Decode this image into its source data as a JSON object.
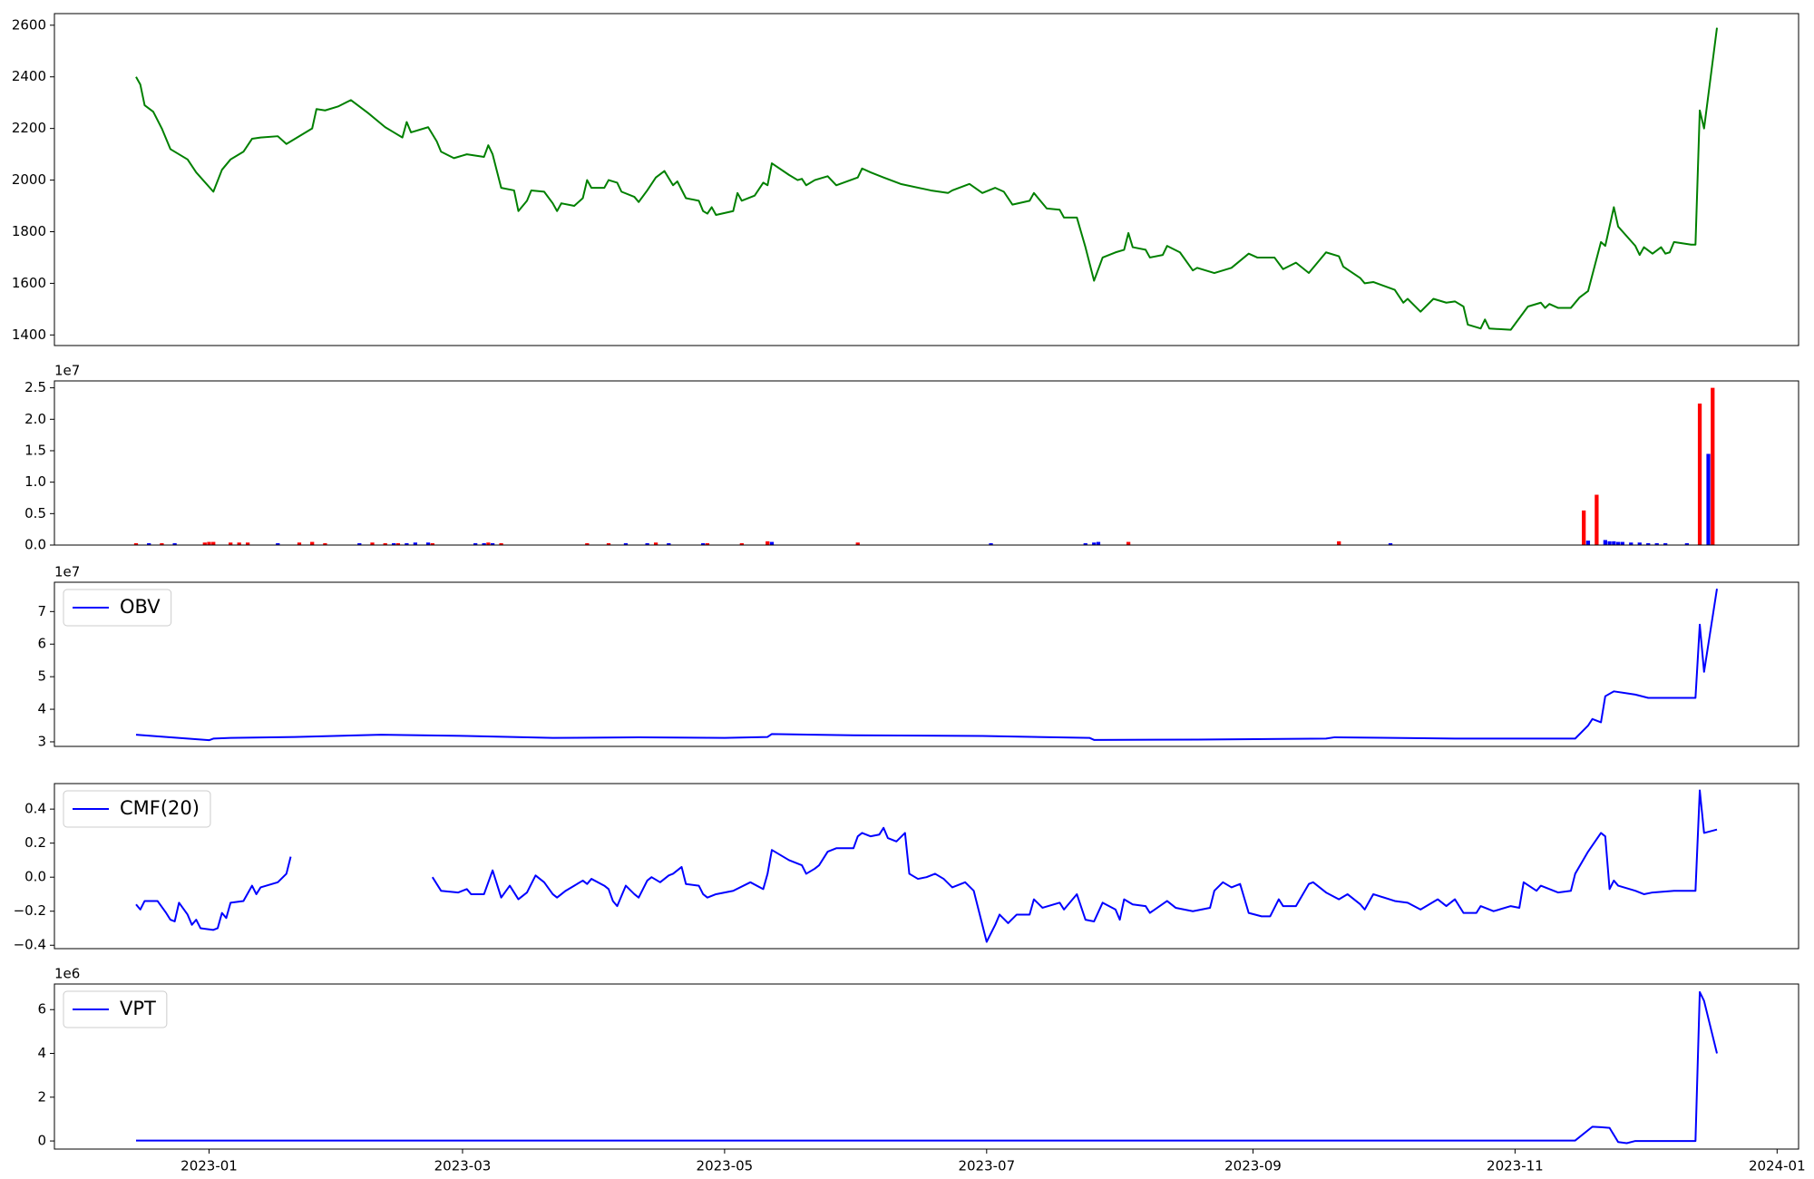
{
  "chart_data": [
    {
      "type": "line",
      "x": [
        -17,
        -16,
        -15,
        -13,
        -11,
        -9,
        -5,
        -3,
        1,
        3,
        5,
        8,
        10,
        12,
        16,
        18,
        24,
        25,
        27,
        30,
        33,
        35,
        37,
        41,
        43,
        45,
        46,
        47,
        51,
        53,
        54,
        57,
        60,
        64,
        65,
        66,
        68,
        71,
        72,
        74,
        75,
        78,
        80,
        81,
        82,
        85,
        87,
        88,
        89,
        92,
        93,
        95,
        96,
        99,
        100,
        102,
        104,
        106,
        108,
        109,
        111,
        114,
        115,
        116,
        117,
        118,
        122,
        123,
        124,
        127,
        129,
        130,
        131,
        135,
        137,
        138,
        139,
        141,
        144,
        146,
        151,
        152,
        154,
        157,
        161,
        168,
        172,
        173,
        177,
        180,
        183,
        185,
        187,
        191,
        192,
        195,
        198,
        199,
        202,
        204,
        206,
        208,
        211,
        213,
        214,
        215,
        218,
        219,
        222,
        223,
        226,
        229,
        230,
        234,
        238,
        242,
        244,
        248,
        250,
        253,
        256,
        260,
        263,
        264,
        268,
        269,
        271,
        276,
        278,
        279,
        282,
        285,
        288,
        290,
        292,
        293,
        296,
        297,
        298,
        303,
        307,
        310,
        311,
        312,
        314,
        317,
        319,
        321,
        324,
        325,
        327,
        328,
        332,
        333,
        334,
        336,
        338,
        339,
        340,
        341,
        345,
        346,
        347,
        348,
        351
      ],
      "series": [
        {
          "color": "#008000",
          "values": [
            2400,
            2370,
            2290,
            2265,
            2200,
            2120,
            2080,
            2030,
            1955,
            2040,
            2080,
            2110,
            2160,
            2165,
            2170,
            2140,
            2200,
            2275,
            2270,
            2285,
            2310,
            2285,
            2260,
            2205,
            2185,
            2165,
            2225,
            2185,
            2205,
            2150,
            2110,
            2085,
            2100,
            2090,
            2135,
            2100,
            1970,
            1960,
            1880,
            1920,
            1960,
            1955,
            1910,
            1880,
            1910,
            1900,
            1930,
            2000,
            1970,
            1970,
            2000,
            1990,
            1955,
            1935,
            1915,
            1960,
            2010,
            2035,
            1980,
            1995,
            1930,
            1920,
            1880,
            1870,
            1895,
            1865,
            1880,
            1950,
            1920,
            1940,
            1990,
            1980,
            2065,
            2020,
            2000,
            2005,
            1980,
            2000,
            2015,
            1980,
            2010,
            2045,
            2030,
            2010,
            1985,
            1960,
            1950,
            1960,
            1985,
            1950,
            1970,
            1955,
            1905,
            1920,
            1950,
            1890,
            1885,
            1855,
            1855,
            1740,
            1610,
            1700,
            1720,
            1730,
            1795,
            1740,
            1730,
            1700,
            1710,
            1745,
            1720,
            1650,
            1660,
            1640,
            1660,
            1715,
            1700,
            1700,
            1655,
            1680,
            1640,
            1720,
            1705,
            1665,
            1620,
            1600,
            1605,
            1575,
            1525,
            1540,
            1490,
            1540,
            1525,
            1530,
            1510,
            1440,
            1425,
            1460,
            1425,
            1420,
            1510,
            1525,
            1505,
            1520,
            1505,
            1505,
            1545,
            1570,
            1760,
            1745,
            1895,
            1820,
            1745,
            1710,
            1740,
            1715,
            1740,
            1715,
            1720,
            1760,
            1750,
            1750,
            2270,
            2200,
            2590
          ]
        }
      ],
      "xlim": [
        -36,
        370
      ],
      "ylim": [
        1359,
        2645
      ],
      "yticks": [
        1400,
        1600,
        1800,
        2000,
        2200,
        2400,
        2600
      ]
    },
    {
      "type": "bar",
      "offset_text": "1e7",
      "series": [
        {
          "color": "#ff0000",
          "x": [
            -17,
            -11,
            -1,
            0,
            1,
            5,
            7,
            9,
            21,
            24,
            27,
            38,
            41,
            44,
            52,
            65,
            68,
            88,
            93,
            104,
            116,
            124,
            130,
            151,
            214,
            263,
            320,
            323,
            347,
            350
          ],
          "values": [
            0.03,
            0.03,
            0.04,
            0.05,
            0.05,
            0.04,
            0.04,
            0.04,
            0.04,
            0.05,
            0.03,
            0.04,
            0.03,
            0.03,
            0.03,
            0.04,
            0.03,
            0.03,
            0.03,
            0.04,
            0.03,
            0.03,
            0.06,
            0.04,
            0.05,
            0.06,
            0.55,
            0.8,
            2.25,
            2.5
          ]
        },
        {
          "color": "#0000ff",
          "x": [
            -14,
            -8,
            16,
            35,
            43,
            46,
            48,
            51,
            62,
            64,
            66,
            97,
            102,
            107,
            115,
            131,
            182,
            204,
            206,
            207,
            275,
            321,
            325,
            326,
            327,
            328,
            329,
            331,
            333,
            335,
            337,
            339,
            344,
            349
          ],
          "values": [
            0.03,
            0.03,
            0.03,
            0.03,
            0.03,
            0.03,
            0.04,
            0.04,
            0.03,
            0.03,
            0.03,
            0.03,
            0.03,
            0.03,
            0.03,
            0.05,
            0.03,
            0.03,
            0.04,
            0.05,
            0.03,
            0.07,
            0.08,
            0.06,
            0.06,
            0.05,
            0.05,
            0.04,
            0.04,
            0.03,
            0.03,
            0.03,
            0.03,
            1.45
          ]
        }
      ],
      "xlim": [
        -36,
        370
      ],
      "ylim": [
        0,
        2.61
      ],
      "yticks": [
        {
          "value": 0,
          "label": "0.0"
        },
        {
          "value": 0.5,
          "label": "0.5"
        },
        {
          "value": 1,
          "label": "1.0"
        },
        {
          "value": 1.5,
          "label": "1.5"
        },
        {
          "value": 2,
          "label": "2.0"
        },
        {
          "value": 2.5,
          "label": "2.5"
        }
      ]
    },
    {
      "type": "line",
      "offset_text": "1e7",
      "legend": "upper left",
      "x": [
        -17,
        -10,
        0,
        1,
        5,
        20,
        40,
        60,
        80,
        100,
        120,
        130,
        131,
        150,
        180,
        205,
        206,
        230,
        260,
        262,
        290,
        318,
        321,
        322,
        324,
        325,
        327,
        332,
        335,
        340,
        346,
        347,
        348,
        351
      ],
      "series": [
        {
          "name": "OBV",
          "color": "#0000ff",
          "values": [
            3.22,
            3.15,
            3.05,
            3.1,
            3.12,
            3.15,
            3.22,
            3.18,
            3.12,
            3.14,
            3.12,
            3.15,
            3.24,
            3.2,
            3.18,
            3.12,
            3.06,
            3.07,
            3.1,
            3.14,
            3.1,
            3.1,
            3.5,
            3.7,
            3.6,
            4.4,
            4.55,
            4.45,
            4.35,
            4.35,
            4.35,
            6.6,
            5.15,
            7.7
          ]
        }
      ],
      "xlim": [
        -36,
        370
      ],
      "ylim": [
        2.86,
        7.9
      ],
      "yticks": [
        3,
        4,
        5,
        6,
        7
      ]
    },
    {
      "type": "line",
      "legend": "upper left",
      "x": [
        -17,
        -16,
        -15,
        -12,
        -10,
        -9,
        -8,
        -7,
        -5,
        -4,
        -3,
        -2,
        1,
        2,
        3,
        4,
        5,
        8,
        10,
        11,
        12,
        16,
        18,
        19,
        30,
        52,
        54,
        58,
        60,
        61,
        64,
        66,
        68,
        70,
        72,
        74,
        76,
        78,
        80,
        81,
        83,
        85,
        87,
        88,
        89,
        92,
        93,
        94,
        95,
        97,
        99,
        100,
        102,
        103,
        105,
        107,
        108,
        110,
        111,
        114,
        115,
        116,
        118,
        122,
        126,
        129,
        130,
        131,
        135,
        138,
        139,
        141,
        142,
        144,
        146,
        150,
        151,
        152,
        154,
        156,
        157,
        158,
        160,
        162,
        163,
        165,
        167,
        169,
        171,
        173,
        176,
        178,
        181,
        183,
        184,
        186,
        188,
        191,
        192,
        194,
        198,
        199,
        202,
        204,
        206,
        208,
        211,
        212,
        213,
        215,
        218,
        219,
        223,
        225,
        229,
        233,
        234,
        236,
        238,
        240,
        242,
        245,
        247,
        249,
        250,
        253,
        256,
        257,
        260,
        263,
        265,
        268,
        269,
        271,
        276,
        279,
        282,
        286,
        288,
        290,
        292,
        295,
        296,
        299,
        303,
        305,
        306,
        309,
        310,
        314,
        317,
        318,
        321,
        324,
        325,
        326,
        327,
        328,
        332,
        334,
        336,
        341,
        346,
        347,
        348,
        351
      ],
      "series": [
        {
          "name": "CMF(20)",
          "color": "#0000ff",
          "values": [
            -0.16,
            -0.19,
            -0.14,
            -0.14,
            -0.21,
            -0.25,
            -0.26,
            -0.15,
            -0.22,
            -0.28,
            -0.25,
            -0.3,
            -0.31,
            -0.3,
            -0.21,
            -0.24,
            -0.15,
            -0.14,
            -0.05,
            -0.1,
            -0.06,
            -0.03,
            0.02,
            0.12,
            null,
            0.0,
            -0.08,
            -0.09,
            -0.07,
            -0.1,
            -0.1,
            0.04,
            -0.12,
            -0.05,
            -0.13,
            -0.09,
            0.01,
            -0.03,
            -0.1,
            -0.12,
            -0.08,
            -0.05,
            -0.02,
            -0.04,
            -0.01,
            -0.05,
            -0.07,
            -0.14,
            -0.17,
            -0.05,
            -0.1,
            -0.12,
            -0.02,
            0.0,
            -0.03,
            0.01,
            0.02,
            0.06,
            -0.04,
            -0.05,
            -0.1,
            -0.12,
            -0.1,
            -0.08,
            -0.03,
            -0.07,
            0.02,
            0.16,
            0.1,
            0.07,
            0.02,
            0.05,
            0.07,
            0.15,
            0.17,
            0.17,
            0.24,
            0.26,
            0.24,
            0.25,
            0.29,
            0.23,
            0.21,
            0.26,
            0.02,
            -0.01,
            0.0,
            0.02,
            -0.01,
            -0.06,
            -0.03,
            -0.08,
            -0.38,
            -0.28,
            -0.22,
            -0.27,
            -0.22,
            -0.22,
            -0.13,
            -0.18,
            -0.15,
            -0.19,
            -0.1,
            -0.25,
            -0.26,
            -0.15,
            -0.19,
            -0.25,
            -0.13,
            -0.16,
            -0.17,
            -0.21,
            -0.14,
            -0.18,
            -0.2,
            -0.18,
            -0.08,
            -0.03,
            -0.06,
            -0.04,
            -0.21,
            -0.23,
            -0.23,
            -0.13,
            -0.17,
            -0.17,
            -0.04,
            -0.03,
            -0.09,
            -0.13,
            -0.1,
            -0.16,
            -0.19,
            -0.1,
            -0.14,
            -0.15,
            -0.19,
            -0.13,
            -0.17,
            -0.13,
            -0.21,
            -0.21,
            -0.17,
            -0.2,
            -0.17,
            -0.18,
            -0.03,
            -0.08,
            -0.05,
            -0.09,
            -0.08,
            0.02,
            0.15,
            0.26,
            0.24,
            -0.07,
            -0.02,
            -0.05,
            -0.08,
            -0.1,
            -0.09,
            -0.08,
            -0.08,
            0.51,
            0.26,
            0.28
          ]
        }
      ],
      "xlim": [
        -36,
        370
      ],
      "ylim": [
        -0.42,
        0.55
      ],
      "yticks": [
        {
          "value": -0.4,
          "label": "−0.4"
        },
        {
          "value": -0.2,
          "label": "−0.2"
        },
        {
          "value": 0,
          "label": "0.0"
        },
        {
          "value": 0.2,
          "label": "0.2"
        },
        {
          "value": 0.4,
          "label": "0.4"
        }
      ]
    },
    {
      "type": "line",
      "offset_text": "1e6",
      "legend": "upper left",
      "x": [
        -17,
        0,
        100,
        200,
        318,
        322,
        324,
        326,
        328,
        330,
        332,
        346,
        347,
        348,
        351
      ],
      "series": [
        {
          "name": "VPT",
          "color": "#0000ff",
          "values": [
            0.02,
            0.02,
            0.02,
            0.02,
            0.02,
            0.65,
            0.63,
            0.6,
            -0.05,
            -0.1,
            0.0,
            0.0,
            6.8,
            6.4,
            4.0
          ]
        }
      ],
      "xlim": [
        -36,
        370
      ],
      "ylim": [
        -0.37,
        7.17
      ],
      "yticks": [
        0,
        2,
        4,
        6
      ],
      "xticks": [
        {
          "value": 0,
          "label": "2023-01"
        },
        {
          "value": 59,
          "label": "2023-03"
        },
        {
          "value": 120,
          "label": "2023-05"
        },
        {
          "value": 181,
          "label": "2023-07"
        },
        {
          "value": 243,
          "label": "2023-09"
        },
        {
          "value": 304,
          "label": "2023-11"
        },
        {
          "value": 365,
          "label": "2024-01"
        }
      ]
    }
  ]
}
